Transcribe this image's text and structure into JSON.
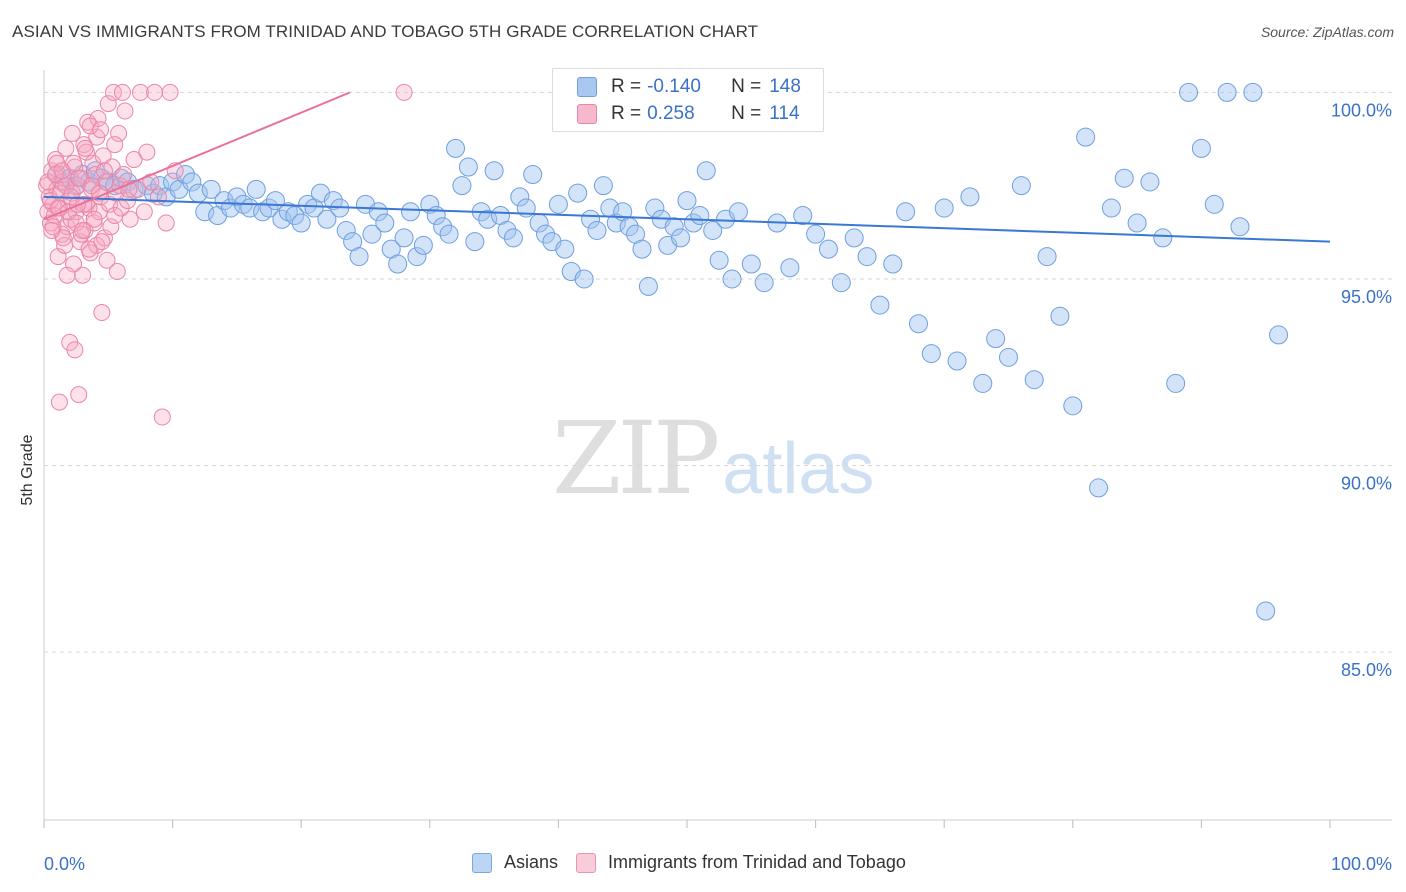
{
  "title": "ASIAN VS IMMIGRANTS FROM TRINIDAD AND TOBAGO 5TH GRADE CORRELATION CHART",
  "source": "Source: ZipAtlas.com",
  "watermark": {
    "zip": "ZIP",
    "atlas": "atlas"
  },
  "legend": {
    "r_label": "R =",
    "n_label": "N =",
    "items": [
      {
        "r": "-0.140",
        "n": "148",
        "fill": "#a9c8f0",
        "stroke": "#6fa0e0"
      },
      {
        "r": "0.258",
        "n": "114",
        "fill": "#f6b8cc",
        "stroke": "#e888a8"
      }
    ]
  },
  "bottom_legend": [
    {
      "label": "Asians",
      "fill": "#bcd5f3",
      "stroke": "#7aa7e0"
    },
    {
      "label": "Immigrants from Trinidad and Tobago",
      "fill": "#f9ccd9",
      "stroke": "#e996b2"
    }
  ],
  "chart_data": {
    "type": "scatter",
    "title": "ASIAN VS IMMIGRANTS FROM TRINIDAD AND TOBAGO 5TH GRADE CORRELATION CHART",
    "xlabel": "",
    "ylabel": "5th Grade",
    "xlim": [
      0,
      100
    ],
    "ylim": [
      80.5,
      100.6
    ],
    "x_tick_labels": [
      "0.0%",
      "100.0%"
    ],
    "y_ticks": [
      {
        "value": 100,
        "label": "100.0%"
      },
      {
        "value": 95,
        "label": "95.0%"
      },
      {
        "value": 90,
        "label": "90.0%"
      },
      {
        "value": 85,
        "label": "85.0%"
      }
    ],
    "colors": {
      "asians": "#3a78d4",
      "trinidad": "#e8709a",
      "tick_label": "#3a72c8"
    },
    "series": [
      {
        "name": "Asians",
        "trend": {
          "x": [
            0,
            100
          ],
          "y": [
            97.2,
            96.0
          ]
        },
        "points": [
          [
            1.0,
            97.8
          ],
          [
            1.5,
            97.6
          ],
          [
            2.0,
            97.7
          ],
          [
            2.5,
            97.5
          ],
          [
            3.0,
            97.8
          ],
          [
            3.5,
            97.6
          ],
          [
            4.0,
            97.9
          ],
          [
            4.5,
            97.7
          ],
          [
            5.0,
            97.6
          ],
          [
            5.5,
            97.5
          ],
          [
            6.0,
            97.7
          ],
          [
            6.5,
            97.6
          ],
          [
            7.0,
            97.4
          ],
          [
            8.0,
            97.5
          ],
          [
            8.5,
            97.3
          ],
          [
            9.0,
            97.5
          ],
          [
            9.5,
            97.2
          ],
          [
            10.0,
            97.6
          ],
          [
            10.5,
            97.4
          ],
          [
            11.0,
            97.8
          ],
          [
            11.5,
            97.6
          ],
          [
            12.0,
            97.3
          ],
          [
            12.5,
            96.8
          ],
          [
            13.0,
            97.4
          ],
          [
            13.5,
            96.7
          ],
          [
            14.0,
            97.1
          ],
          [
            14.5,
            96.9
          ],
          [
            15.0,
            97.2
          ],
          [
            15.5,
            97.0
          ],
          [
            16.0,
            96.9
          ],
          [
            16.5,
            97.4
          ],
          [
            17.0,
            96.8
          ],
          [
            17.5,
            96.9
          ],
          [
            18.0,
            97.1
          ],
          [
            18.5,
            96.6
          ],
          [
            19.0,
            96.8
          ],
          [
            19.5,
            96.7
          ],
          [
            20.0,
            96.5
          ],
          [
            20.5,
            97.0
          ],
          [
            21.0,
            96.9
          ],
          [
            21.5,
            97.3
          ],
          [
            22.0,
            96.6
          ],
          [
            22.5,
            97.1
          ],
          [
            23.0,
            96.9
          ],
          [
            23.5,
            96.3
          ],
          [
            24.0,
            96.0
          ],
          [
            24.5,
            95.6
          ],
          [
            25.0,
            97.0
          ],
          [
            25.5,
            96.2
          ],
          [
            26.0,
            96.8
          ],
          [
            26.5,
            96.5
          ],
          [
            27.0,
            95.8
          ],
          [
            27.5,
            95.4
          ],
          [
            28.0,
            96.1
          ],
          [
            28.5,
            96.8
          ],
          [
            29.0,
            95.6
          ],
          [
            29.5,
            95.9
          ],
          [
            30.0,
            97.0
          ],
          [
            30.5,
            96.7
          ],
          [
            31.0,
            96.4
          ],
          [
            31.5,
            96.2
          ],
          [
            32.0,
            98.5
          ],
          [
            32.5,
            97.5
          ],
          [
            33.0,
            98.0
          ],
          [
            33.5,
            96.0
          ],
          [
            34.0,
            96.8
          ],
          [
            34.5,
            96.6
          ],
          [
            35.0,
            97.9
          ],
          [
            35.5,
            96.7
          ],
          [
            36.0,
            96.3
          ],
          [
            36.5,
            96.1
          ],
          [
            37.0,
            97.2
          ],
          [
            37.5,
            96.9
          ],
          [
            38.0,
            97.8
          ],
          [
            38.5,
            96.5
          ],
          [
            39.0,
            96.2
          ],
          [
            39.5,
            96.0
          ],
          [
            40.0,
            97.0
          ],
          [
            40.5,
            95.8
          ],
          [
            41.0,
            95.2
          ],
          [
            41.5,
            97.3
          ],
          [
            42.0,
            95.0
          ],
          [
            42.5,
            96.6
          ],
          [
            43.0,
            96.3
          ],
          [
            43.5,
            97.5
          ],
          [
            44.0,
            96.9
          ],
          [
            44.5,
            96.5
          ],
          [
            45.0,
            96.8
          ],
          [
            45.5,
            96.4
          ],
          [
            46.0,
            96.2
          ],
          [
            46.5,
            95.8
          ],
          [
            47.0,
            94.8
          ],
          [
            47.5,
            96.9
          ],
          [
            48.0,
            96.6
          ],
          [
            48.5,
            95.9
          ],
          [
            49.0,
            96.4
          ],
          [
            49.5,
            96.1
          ],
          [
            50.0,
            97.1
          ],
          [
            50.5,
            96.5
          ],
          [
            51.0,
            96.7
          ],
          [
            51.5,
            97.9
          ],
          [
            52.0,
            96.3
          ],
          [
            52.5,
            95.5
          ],
          [
            53.0,
            96.6
          ],
          [
            53.5,
            95.0
          ],
          [
            54.0,
            96.8
          ],
          [
            55.0,
            95.4
          ],
          [
            56.0,
            94.9
          ],
          [
            57.0,
            96.5
          ],
          [
            58.0,
            95.3
          ],
          [
            59.0,
            96.7
          ],
          [
            60.0,
            96.2
          ],
          [
            61.0,
            95.8
          ],
          [
            62.0,
            94.9
          ],
          [
            63.0,
            96.1
          ],
          [
            64.0,
            95.6
          ],
          [
            65.0,
            94.3
          ],
          [
            66.0,
            95.4
          ],
          [
            67.0,
            96.8
          ],
          [
            68.0,
            93.8
          ],
          [
            69.0,
            93.0
          ],
          [
            70.0,
            96.9
          ],
          [
            71.0,
            92.8
          ],
          [
            72.0,
            97.2
          ],
          [
            73.0,
            92.2
          ],
          [
            74.0,
            93.4
          ],
          [
            75.0,
            92.9
          ],
          [
            76.0,
            97.5
          ],
          [
            77.0,
            92.3
          ],
          [
            78.0,
            95.6
          ],
          [
            79.0,
            94.0
          ],
          [
            80.0,
            91.6
          ],
          [
            81.0,
            98.8
          ],
          [
            82.0,
            89.4
          ],
          [
            83.0,
            96.9
          ],
          [
            84.0,
            97.7
          ],
          [
            85.0,
            96.5
          ],
          [
            86.0,
            97.6
          ],
          [
            87.0,
            96.1
          ],
          [
            88.0,
            92.2
          ],
          [
            89.0,
            100.0
          ],
          [
            90.0,
            98.5
          ],
          [
            91.0,
            97.0
          ],
          [
            92.0,
            100.0
          ],
          [
            93.0,
            96.4
          ],
          [
            94.0,
            100.0
          ],
          [
            95.0,
            86.1
          ],
          [
            96.0,
            93.5
          ]
        ]
      },
      {
        "name": "Immigrants from Trinidad and Tobago",
        "trend": {
          "x": [
            0,
            23.8
          ],
          "y": [
            96.6,
            100.0
          ]
        },
        "points": [
          [
            0.2,
            97.5
          ],
          [
            0.3,
            96.8
          ],
          [
            0.4,
            97.2
          ],
          [
            0.5,
            96.5
          ],
          [
            0.6,
            97.9
          ],
          [
            0.7,
            97.0
          ],
          [
            0.8,
            96.7
          ],
          [
            0.9,
            98.2
          ],
          [
            1.0,
            97.4
          ],
          [
            1.1,
            95.6
          ],
          [
            1.2,
            96.9
          ],
          [
            1.3,
            97.6
          ],
          [
            1.4,
            96.2
          ],
          [
            1.5,
            97.8
          ],
          [
            1.6,
            95.9
          ],
          [
            1.7,
            98.5
          ],
          [
            1.8,
            96.4
          ],
          [
            1.9,
            97.1
          ],
          [
            2.0,
            93.3
          ],
          [
            2.1,
            96.6
          ],
          [
            2.2,
            97.3
          ],
          [
            2.3,
            95.4
          ],
          [
            2.4,
            98.0
          ],
          [
            2.5,
            96.8
          ],
          [
            2.6,
            97.5
          ],
          [
            2.7,
            91.9
          ],
          [
            2.8,
            96.0
          ],
          [
            2.9,
            97.7
          ],
          [
            3.0,
            95.1
          ],
          [
            3.1,
            98.6
          ],
          [
            3.2,
            96.3
          ],
          [
            3.3,
            97.0
          ],
          [
            3.4,
            99.2
          ],
          [
            3.5,
            96.9
          ],
          [
            3.6,
            95.7
          ],
          [
            3.7,
            97.4
          ],
          [
            3.8,
            98.1
          ],
          [
            3.9,
            96.5
          ],
          [
            4.0,
            97.8
          ],
          [
            4.1,
            95.9
          ],
          [
            4.2,
            99.3
          ],
          [
            4.3,
            96.8
          ],
          [
            4.4,
            97.2
          ],
          [
            4.5,
            94.1
          ],
          [
            4.6,
            98.3
          ],
          [
            4.7,
            96.1
          ],
          [
            4.8,
            97.6
          ],
          [
            4.9,
            95.5
          ],
          [
            5.0,
            99.7
          ],
          [
            5.1,
            97.0
          ],
          [
            5.2,
            96.4
          ],
          [
            5.3,
            98.0
          ],
          [
            5.4,
            100.0
          ],
          [
            5.5,
            96.7
          ],
          [
            5.6,
            97.3
          ],
          [
            5.7,
            95.2
          ],
          [
            5.8,
            98.9
          ],
          [
            5.9,
            97.5
          ],
          [
            6.0,
            96.9
          ],
          [
            6.1,
            100.0
          ],
          [
            6.2,
            97.8
          ],
          [
            6.3,
            99.5
          ],
          [
            6.5,
            97.1
          ],
          [
            6.7,
            96.6
          ],
          [
            7.0,
            98.2
          ],
          [
            7.3,
            97.4
          ],
          [
            7.5,
            100.0
          ],
          [
            7.8,
            96.8
          ],
          [
            8.0,
            98.4
          ],
          [
            8.3,
            97.6
          ],
          [
            8.6,
            100.0
          ],
          [
            8.9,
            97.2
          ],
          [
            9.2,
            91.3
          ],
          [
            9.5,
            96.5
          ],
          [
            9.8,
            100.0
          ],
          [
            10.2,
            97.9
          ],
          [
            28.0,
            100.0
          ],
          [
            0.3,
            97.6
          ],
          [
            0.5,
            97.1
          ],
          [
            0.7,
            96.4
          ],
          [
            0.9,
            97.8
          ],
          [
            1.1,
            96.9
          ],
          [
            1.3,
            97.3
          ],
          [
            1.5,
            96.1
          ],
          [
            1.7,
            97.5
          ],
          [
            1.9,
            96.8
          ],
          [
            2.1,
            97.2
          ],
          [
            2.3,
            98.1
          ],
          [
            2.5,
            96.5
          ],
          [
            2.7,
            97.7
          ],
          [
            2.9,
            96.2
          ],
          [
            3.1,
            97.0
          ],
          [
            3.3,
            98.4
          ],
          [
            3.5,
            95.8
          ],
          [
            3.7,
            97.5
          ],
          [
            3.9,
            96.6
          ],
          [
            4.1,
            98.8
          ],
          [
            4.3,
            97.3
          ],
          [
            4.5,
            96.0
          ],
          [
            4.7,
            97.9
          ],
          [
            1.2,
            91.7
          ],
          [
            2.4,
            93.1
          ],
          [
            1.8,
            95.1
          ],
          [
            3.6,
            99.1
          ],
          [
            2.2,
            98.9
          ],
          [
            1.0,
            98.1
          ],
          [
            4.4,
            99.0
          ],
          [
            3.0,
            96.3
          ],
          [
            5.5,
            98.6
          ],
          [
            6.6,
            97.4
          ],
          [
            0.6,
            96.3
          ],
          [
            1.4,
            97.9
          ],
          [
            2.6,
            97.0
          ],
          [
            3.2,
            98.5
          ]
        ]
      }
    ]
  }
}
